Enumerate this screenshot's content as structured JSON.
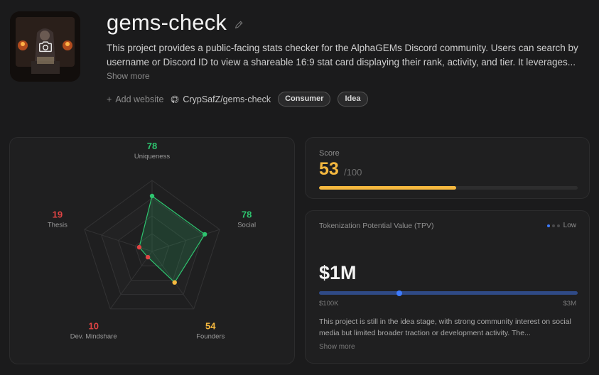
{
  "project": {
    "title": "gems-check",
    "description": "This project provides a public-facing stats checker for the AlphaGEMs Discord community. Users can search by username or Discord ID to view a shareable 16:9 stat card displaying their rank, activity, and tier. It leverages...",
    "show_more": "Show more",
    "add_website": "Add website",
    "repo": "CrypSafZ/gems-check",
    "tags": [
      "Consumer",
      "Idea"
    ]
  },
  "radar": {
    "axes": [
      {
        "name": "Uniqueness",
        "value": 78,
        "color": "#2ec46f"
      },
      {
        "name": "Social",
        "value": 78,
        "color": "#2ec46f"
      },
      {
        "name": "Founders",
        "value": 54,
        "color": "#f5b83f"
      },
      {
        "name": "Dev. Mindshare",
        "value": 10,
        "color": "#e04444"
      },
      {
        "name": "Thesis",
        "value": 19,
        "color": "#e04444"
      }
    ],
    "max": 100
  },
  "score": {
    "label": "Score",
    "value": "53",
    "max_label": "/100",
    "fraction": 0.53,
    "color": "#f5b83f"
  },
  "tpv": {
    "label": "Tokenization Potential Value (TPV)",
    "level": "Low",
    "value": "$1M",
    "min_label": "$100K",
    "max_label": "$3M",
    "position_fraction": 0.31,
    "description": "This project is still in the idea stage, with strong community interest on social media but limited broader traction or development activity. The...",
    "show_more": "Show more"
  }
}
